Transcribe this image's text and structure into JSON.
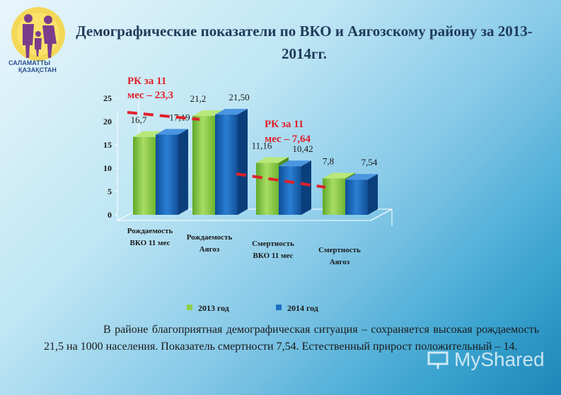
{
  "title": "Демографические показатели по ВКО и Аягозскому району за 2013- 2014гг.",
  "logo": {
    "text_line1": "САЛАМАТТЫ",
    "text_line2": "ҚАЗАҚСТАН"
  },
  "chart_data": {
    "type": "bar",
    "categories": [
      "Рождаемость ВКО 11 мес",
      "Рождаемость Аягоз",
      "Смертность ВКО 11 мес",
      "Смертность Аягоз"
    ],
    "series": [
      {
        "name": "2013 год",
        "values": [
          16.7,
          21.2,
          11.16,
          7.8
        ],
        "labels": [
          "16,7",
          "21,2",
          "11,16",
          "7,8"
        ],
        "color": "#8fcf4a"
      },
      {
        "name": "2014 год",
        "values": [
          17.19,
          21.5,
          10.42,
          7.54
        ],
        "labels": [
          "17,19",
          "21,50",
          "10,42",
          "7,54"
        ],
        "color": "#1f6fc2"
      }
    ],
    "ylim": [
      0,
      25
    ],
    "yticks": [
      "0",
      "5",
      "10",
      "15",
      "20",
      "25"
    ],
    "annotations": [
      {
        "text": "РК за 11 мес – 23,3",
        "line1": "РК за 11",
        "line2": "мес – 23,3",
        "value": 23.3
      },
      {
        "text": "РК за 11 мес – 7,64",
        "line1": "РК за 11",
        "line2": "мес – 7,64",
        "value": 7.64
      }
    ],
    "legend_position": "bottom"
  },
  "body_text": "В районе благоприятная демографическая ситуация – сохраняется высокая рождаемость 21,5 на 1000 населения. Показатель смертности 7,54. Естественный прирост положительный – 14.",
  "watermark": "MyShared"
}
